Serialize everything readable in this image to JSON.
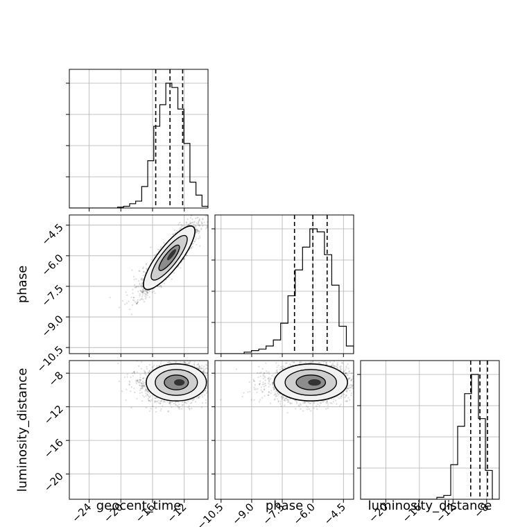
{
  "chart_data": {
    "type": "corner",
    "parameters": [
      "geocent_time",
      "phase",
      "luminosity_distance"
    ],
    "axis_labels": [
      "geocent_time",
      "phase",
      "luminosity_distance"
    ],
    "ranges": [
      [
        -26.5,
        -9.0
      ],
      [
        -10.8,
        -4.0
      ],
      [
        -23.0,
        -6.5
      ]
    ],
    "ticks": [
      [
        -24,
        -20,
        -16,
        -12
      ],
      [
        -10.5,
        -9.0,
        -7.5,
        -6.0,
        -4.5
      ],
      [
        -20,
        -16,
        -12,
        -8
      ]
    ],
    "tick_labels": [
      [
        "−24",
        "−20",
        "−16",
        "−12"
      ],
      [
        "−10.5",
        "−9.0",
        "−7.5",
        "−6.0",
        "−4.5"
      ],
      [
        "−20",
        "−16",
        "−12",
        "−8"
      ]
    ],
    "quantiles": [
      [
        -15.6,
        -13.8,
        -12.2
      ],
      [
        -6.9,
        -6.0,
        -5.3
      ],
      [
        -9.9,
        -8.8,
        -7.9
      ]
    ],
    "marginals": [
      {
        "parameter": "geocent_time",
        "bins": [
          -26.5,
          -9.0
        ],
        "counts": [
          0,
          0,
          0,
          0,
          0,
          0,
          0,
          0,
          1,
          2,
          5,
          8,
          25,
          55,
          95,
          120,
          145,
          140,
          115,
          75,
          30,
          15,
          2
        ]
      },
      {
        "parameter": "phase",
        "bins": [
          -10.8,
          -4.0
        ],
        "counts": [
          0,
          0,
          0,
          0,
          1,
          2,
          3,
          5,
          9,
          20,
          38,
          55,
          70,
          82,
          80,
          65,
          45,
          18,
          5
        ]
      },
      {
        "parameter": "luminosity_distance",
        "bins": [
          -23.0,
          -6.5
        ],
        "counts": [
          0,
          0,
          0,
          0,
          0,
          0,
          0,
          0,
          0,
          0,
          0,
          1,
          2,
          18,
          38,
          55,
          65,
          42,
          15,
          0
        ]
      }
    ],
    "pairs": [
      {
        "x": "geocent_time",
        "y": "phase",
        "center": [
          -13.9,
          -6.1
        ],
        "sigma": [
          1.6,
          0.8
        ],
        "correlation": 0.9,
        "points": 2600
      },
      {
        "x": "geocent_time",
        "y": "luminosity_distance",
        "center": [
          -13.0,
          -9.1
        ],
        "sigma": [
          1.9,
          1.1
        ],
        "correlation": 0.1,
        "points": 2600
      },
      {
        "x": "phase",
        "y": "luminosity_distance",
        "center": [
          -6.1,
          -9.1
        ],
        "sigma": [
          0.9,
          1.1
        ],
        "correlation": 0.1,
        "points": 2600
      }
    ],
    "grid": true
  }
}
